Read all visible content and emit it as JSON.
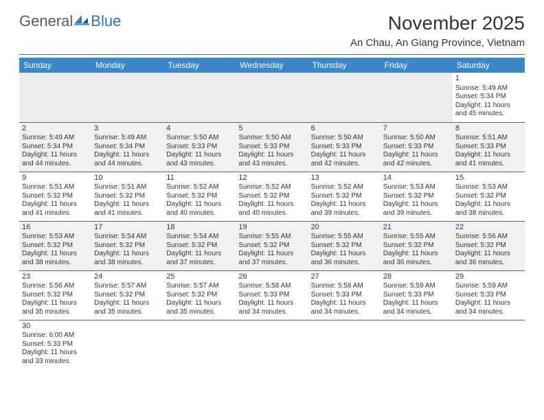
{
  "logo": {
    "text1": "General",
    "text2": "Blue"
  },
  "title": "November 2025",
  "location": "An Chau, An Giang Province, Vietnam",
  "colors": {
    "header_bg": "#3b87c8",
    "rule": "#2978b5",
    "shade": "#f3f0f0",
    "empty": "#ececec",
    "text": "#333333",
    "logo_gray": "#5a5a5a",
    "logo_blue": "#2978b5"
  },
  "typography": {
    "title_fontsize": 28,
    "location_fontsize": 15,
    "header_fontsize": 12,
    "cell_fontsize": 10
  },
  "weekdays": [
    "Sunday",
    "Monday",
    "Tuesday",
    "Wednesday",
    "Thursday",
    "Friday",
    "Saturday"
  ],
  "weeks": [
    [
      null,
      null,
      null,
      null,
      null,
      null,
      {
        "n": "1",
        "sr": "Sunrise: 5:49 AM",
        "ss": "Sunset: 5:34 PM",
        "d1": "Daylight: 11 hours",
        "d2": "and 45 minutes."
      }
    ],
    [
      {
        "n": "2",
        "sr": "Sunrise: 5:49 AM",
        "ss": "Sunset: 5:34 PM",
        "d1": "Daylight: 11 hours",
        "d2": "and 44 minutes."
      },
      {
        "n": "3",
        "sr": "Sunrise: 5:49 AM",
        "ss": "Sunset: 5:34 PM",
        "d1": "Daylight: 11 hours",
        "d2": "and 44 minutes."
      },
      {
        "n": "4",
        "sr": "Sunrise: 5:50 AM",
        "ss": "Sunset: 5:33 PM",
        "d1": "Daylight: 11 hours",
        "d2": "and 43 minutes."
      },
      {
        "n": "5",
        "sr": "Sunrise: 5:50 AM",
        "ss": "Sunset: 5:33 PM",
        "d1": "Daylight: 11 hours",
        "d2": "and 43 minutes."
      },
      {
        "n": "6",
        "sr": "Sunrise: 5:50 AM",
        "ss": "Sunset: 5:33 PM",
        "d1": "Daylight: 11 hours",
        "d2": "and 42 minutes."
      },
      {
        "n": "7",
        "sr": "Sunrise: 5:50 AM",
        "ss": "Sunset: 5:33 PM",
        "d1": "Daylight: 11 hours",
        "d2": "and 42 minutes."
      },
      {
        "n": "8",
        "sr": "Sunrise: 5:51 AM",
        "ss": "Sunset: 5:33 PM",
        "d1": "Daylight: 11 hours",
        "d2": "and 41 minutes."
      }
    ],
    [
      {
        "n": "9",
        "sr": "Sunrise: 5:51 AM",
        "ss": "Sunset: 5:32 PM",
        "d1": "Daylight: 11 hours",
        "d2": "and 41 minutes."
      },
      {
        "n": "10",
        "sr": "Sunrise: 5:51 AM",
        "ss": "Sunset: 5:32 PM",
        "d1": "Daylight: 11 hours",
        "d2": "and 41 minutes."
      },
      {
        "n": "11",
        "sr": "Sunrise: 5:52 AM",
        "ss": "Sunset: 5:32 PM",
        "d1": "Daylight: 11 hours",
        "d2": "and 40 minutes."
      },
      {
        "n": "12",
        "sr": "Sunrise: 5:52 AM",
        "ss": "Sunset: 5:32 PM",
        "d1": "Daylight: 11 hours",
        "d2": "and 40 minutes."
      },
      {
        "n": "13",
        "sr": "Sunrise: 5:52 AM",
        "ss": "Sunset: 5:32 PM",
        "d1": "Daylight: 11 hours",
        "d2": "and 39 minutes."
      },
      {
        "n": "14",
        "sr": "Sunrise: 5:53 AM",
        "ss": "Sunset: 5:32 PM",
        "d1": "Daylight: 11 hours",
        "d2": "and 39 minutes."
      },
      {
        "n": "15",
        "sr": "Sunrise: 5:53 AM",
        "ss": "Sunset: 5:32 PM",
        "d1": "Daylight: 11 hours",
        "d2": "and 38 minutes."
      }
    ],
    [
      {
        "n": "16",
        "sr": "Sunrise: 5:53 AM",
        "ss": "Sunset: 5:32 PM",
        "d1": "Daylight: 11 hours",
        "d2": "and 38 minutes."
      },
      {
        "n": "17",
        "sr": "Sunrise: 5:54 AM",
        "ss": "Sunset: 5:32 PM",
        "d1": "Daylight: 11 hours",
        "d2": "and 38 minutes."
      },
      {
        "n": "18",
        "sr": "Sunrise: 5:54 AM",
        "ss": "Sunset: 5:32 PM",
        "d1": "Daylight: 11 hours",
        "d2": "and 37 minutes."
      },
      {
        "n": "19",
        "sr": "Sunrise: 5:55 AM",
        "ss": "Sunset: 5:32 PM",
        "d1": "Daylight: 11 hours",
        "d2": "and 37 minutes."
      },
      {
        "n": "20",
        "sr": "Sunrise: 5:55 AM",
        "ss": "Sunset: 5:32 PM",
        "d1": "Daylight: 11 hours",
        "d2": "and 36 minutes."
      },
      {
        "n": "21",
        "sr": "Sunrise: 5:55 AM",
        "ss": "Sunset: 5:32 PM",
        "d1": "Daylight: 11 hours",
        "d2": "and 36 minutes."
      },
      {
        "n": "22",
        "sr": "Sunrise: 5:56 AM",
        "ss": "Sunset: 5:32 PM",
        "d1": "Daylight: 11 hours",
        "d2": "and 36 minutes."
      }
    ],
    [
      {
        "n": "23",
        "sr": "Sunrise: 5:56 AM",
        "ss": "Sunset: 5:32 PM",
        "d1": "Daylight: 11 hours",
        "d2": "and 35 minutes."
      },
      {
        "n": "24",
        "sr": "Sunrise: 5:57 AM",
        "ss": "Sunset: 5:32 PM",
        "d1": "Daylight: 11 hours",
        "d2": "and 35 minutes."
      },
      {
        "n": "25",
        "sr": "Sunrise: 5:57 AM",
        "ss": "Sunset: 5:32 PM",
        "d1": "Daylight: 11 hours",
        "d2": "and 35 minutes."
      },
      {
        "n": "26",
        "sr": "Sunrise: 5:58 AM",
        "ss": "Sunset: 5:33 PM",
        "d1": "Daylight: 11 hours",
        "d2": "and 34 minutes."
      },
      {
        "n": "27",
        "sr": "Sunrise: 5:58 AM",
        "ss": "Sunset: 5:33 PM",
        "d1": "Daylight: 11 hours",
        "d2": "and 34 minutes."
      },
      {
        "n": "28",
        "sr": "Sunrise: 5:59 AM",
        "ss": "Sunset: 5:33 PM",
        "d1": "Daylight: 11 hours",
        "d2": "and 34 minutes."
      },
      {
        "n": "29",
        "sr": "Sunrise: 5:59 AM",
        "ss": "Sunset: 5:33 PM",
        "d1": "Daylight: 11 hours",
        "d2": "and 34 minutes."
      }
    ],
    [
      {
        "n": "30",
        "sr": "Sunrise: 6:00 AM",
        "ss": "Sunset: 5:33 PM",
        "d1": "Daylight: 11 hours",
        "d2": "and 33 minutes."
      },
      null,
      null,
      null,
      null,
      null,
      null
    ]
  ]
}
